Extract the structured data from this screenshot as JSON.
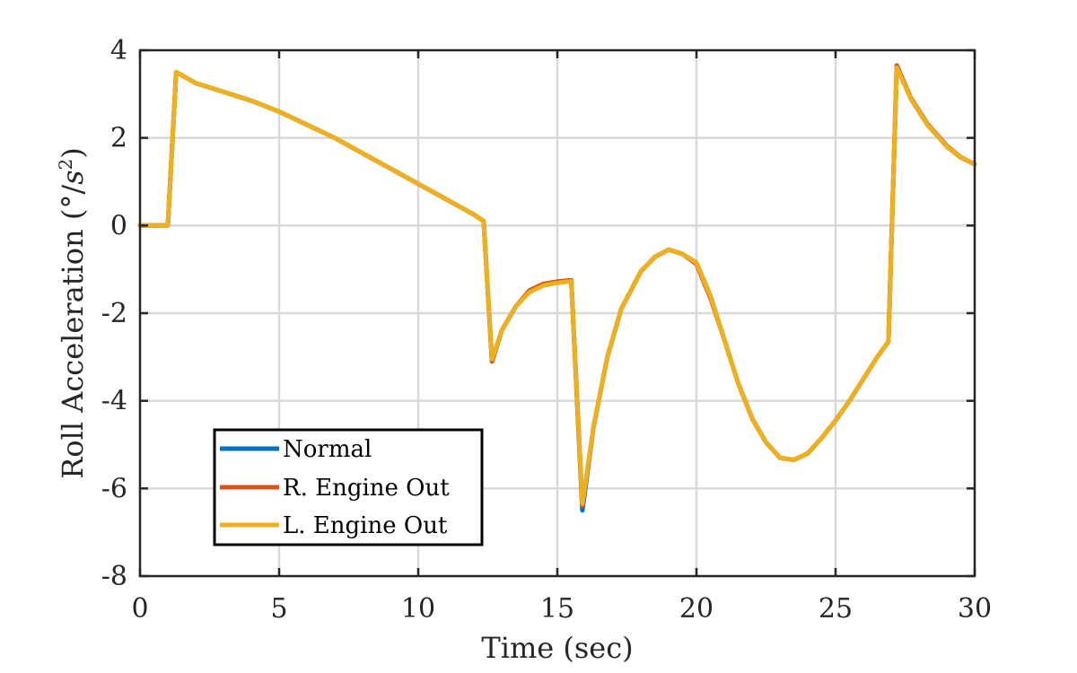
{
  "chart_data": {
    "type": "line",
    "xlabel": "Time (sec)",
    "ylabel_text": "Roll Acceleration (°/",
    "ylabel_unit": "s",
    "ylabel_exp": "2",
    "ylabel_close": ")",
    "xlim": [
      0,
      30
    ],
    "ylim": [
      -8,
      4
    ],
    "xticks": [
      0,
      5,
      10,
      15,
      20,
      25,
      30
    ],
    "yticks": [
      -8,
      -6,
      -4,
      -2,
      0,
      2,
      4
    ],
    "xtick_labels": [
      "0",
      "5",
      "10",
      "15",
      "20",
      "25",
      "30"
    ],
    "ytick_labels": [
      "-8",
      "-6",
      "-4",
      "-2",
      "0",
      "2",
      "4"
    ],
    "grid": true,
    "legend_position": "bottom-left",
    "series": [
      {
        "name": "Normal",
        "color": "#0072BD",
        "points": [
          [
            0,
            0
          ],
          [
            1,
            0
          ],
          [
            1.3,
            3.5
          ],
          [
            2,
            3.25
          ],
          [
            3,
            3.05
          ],
          [
            4,
            2.85
          ],
          [
            5,
            2.6
          ],
          [
            6,
            2.3
          ],
          [
            7,
            2.0
          ],
          [
            8,
            1.65
          ],
          [
            9,
            1.3
          ],
          [
            10,
            0.95
          ],
          [
            11,
            0.6
          ],
          [
            12,
            0.25
          ],
          [
            12.35,
            0.1
          ],
          [
            12.65,
            -3.1
          ],
          [
            13,
            -2.4
          ],
          [
            13.5,
            -1.85
          ],
          [
            14,
            -1.5
          ],
          [
            14.5,
            -1.35
          ],
          [
            15,
            -1.3
          ],
          [
            15.5,
            -1.25
          ],
          [
            15.9,
            -6.5
          ],
          [
            16.3,
            -4.6
          ],
          [
            16.8,
            -3.0
          ],
          [
            17.3,
            -1.9
          ],
          [
            18,
            -1.05
          ],
          [
            18.5,
            -0.72
          ],
          [
            19,
            -0.55
          ],
          [
            19.5,
            -0.65
          ],
          [
            20,
            -0.85
          ],
          [
            20.5,
            -1.6
          ],
          [
            21,
            -2.6
          ],
          [
            21.5,
            -3.6
          ],
          [
            22,
            -4.4
          ],
          [
            22.5,
            -4.95
          ],
          [
            23,
            -5.3
          ],
          [
            23.5,
            -5.35
          ],
          [
            24,
            -5.2
          ],
          [
            24.5,
            -4.85
          ],
          [
            25,
            -4.45
          ],
          [
            25.5,
            -4.0
          ],
          [
            26,
            -3.5
          ],
          [
            26.5,
            -3.0
          ],
          [
            26.9,
            -2.65
          ],
          [
            27.2,
            3.65
          ],
          [
            27.7,
            2.9
          ],
          [
            28.3,
            2.3
          ],
          [
            29,
            1.8
          ],
          [
            29.5,
            1.55
          ],
          [
            30,
            1.4
          ]
        ]
      },
      {
        "name": "R. Engine Out",
        "color": "#D95319",
        "points": [
          [
            0,
            0
          ],
          [
            1,
            0
          ],
          [
            1.3,
            3.5
          ],
          [
            2,
            3.25
          ],
          [
            3,
            3.05
          ],
          [
            4,
            2.85
          ],
          [
            5,
            2.6
          ],
          [
            6,
            2.3
          ],
          [
            7,
            2.0
          ],
          [
            8,
            1.65
          ],
          [
            9,
            1.3
          ],
          [
            10,
            0.95
          ],
          [
            11,
            0.6
          ],
          [
            12,
            0.25
          ],
          [
            12.35,
            0.1
          ],
          [
            12.65,
            -3.1
          ],
          [
            13,
            -2.4
          ],
          [
            13.5,
            -1.85
          ],
          [
            14,
            -1.48
          ],
          [
            14.5,
            -1.33
          ],
          [
            15,
            -1.28
          ],
          [
            15.5,
            -1.25
          ],
          [
            15.9,
            -6.4
          ],
          [
            16.3,
            -4.6
          ],
          [
            16.8,
            -3.0
          ],
          [
            17.3,
            -1.9
          ],
          [
            18,
            -1.05
          ],
          [
            18.5,
            -0.72
          ],
          [
            19,
            -0.55
          ],
          [
            19.5,
            -0.65
          ],
          [
            20,
            -0.88
          ],
          [
            20.5,
            -1.65
          ],
          [
            21,
            -2.6
          ],
          [
            21.5,
            -3.6
          ],
          [
            22,
            -4.4
          ],
          [
            22.5,
            -4.95
          ],
          [
            23,
            -5.3
          ],
          [
            23.5,
            -5.35
          ],
          [
            24,
            -5.2
          ],
          [
            24.5,
            -4.85
          ],
          [
            25,
            -4.45
          ],
          [
            25.5,
            -4.0
          ],
          [
            26,
            -3.5
          ],
          [
            26.5,
            -3.0
          ],
          [
            26.9,
            -2.65
          ],
          [
            27.2,
            3.65
          ],
          [
            27.7,
            2.92
          ],
          [
            28.3,
            2.32
          ],
          [
            29,
            1.82
          ],
          [
            29.5,
            1.56
          ],
          [
            30,
            1.4
          ]
        ]
      },
      {
        "name": "L. Engine Out",
        "color": "#EDB120",
        "points": [
          [
            0,
            0
          ],
          [
            1,
            0
          ],
          [
            1.3,
            3.5
          ],
          [
            2,
            3.25
          ],
          [
            3,
            3.05
          ],
          [
            4,
            2.85
          ],
          [
            5,
            2.6
          ],
          [
            6,
            2.3
          ],
          [
            7,
            2.0
          ],
          [
            8,
            1.65
          ],
          [
            9,
            1.3
          ],
          [
            10,
            0.95
          ],
          [
            11,
            0.6
          ],
          [
            12,
            0.25
          ],
          [
            12.35,
            0.1
          ],
          [
            12.65,
            -3.05
          ],
          [
            13,
            -2.4
          ],
          [
            13.5,
            -1.85
          ],
          [
            14,
            -1.52
          ],
          [
            14.5,
            -1.37
          ],
          [
            15,
            -1.31
          ],
          [
            15.5,
            -1.27
          ],
          [
            15.9,
            -6.35
          ],
          [
            16.3,
            -4.6
          ],
          [
            16.8,
            -3.0
          ],
          [
            17.3,
            -1.9
          ],
          [
            18,
            -1.05
          ],
          [
            18.5,
            -0.72
          ],
          [
            19,
            -0.55
          ],
          [
            19.5,
            -0.65
          ],
          [
            20,
            -0.85
          ],
          [
            20.5,
            -1.6
          ],
          [
            21,
            -2.6
          ],
          [
            21.5,
            -3.6
          ],
          [
            22,
            -4.4
          ],
          [
            22.5,
            -4.95
          ],
          [
            23,
            -5.3
          ],
          [
            23.5,
            -5.35
          ],
          [
            24,
            -5.2
          ],
          [
            24.5,
            -4.85
          ],
          [
            25,
            -4.45
          ],
          [
            25.5,
            -4.0
          ],
          [
            26,
            -3.5
          ],
          [
            26.5,
            -3.0
          ],
          [
            26.9,
            -2.65
          ],
          [
            27.2,
            3.6
          ],
          [
            27.7,
            2.9
          ],
          [
            28.3,
            2.3
          ],
          [
            29,
            1.8
          ],
          [
            29.5,
            1.55
          ],
          [
            30,
            1.4
          ]
        ]
      }
    ]
  }
}
